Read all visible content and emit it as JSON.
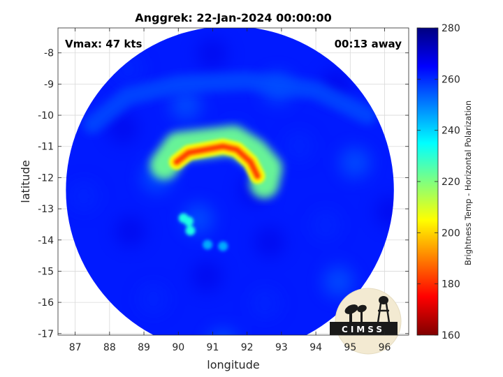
{
  "chart_data": {
    "type": "heatmap",
    "title": "Anggrek: 22-Jan-2024 00:00:00",
    "xlabel": "longitude",
    "ylabel": "latitude",
    "xlim": [
      86.5,
      96.7
    ],
    "ylim": [
      -17.05,
      -7.2
    ],
    "xticks": [
      "87",
      "88",
      "89",
      "90",
      "91",
      "92",
      "93",
      "94",
      "95",
      "96"
    ],
    "yticks": [
      "-8",
      "-9",
      "-10",
      "-11",
      "-12",
      "-13",
      "-14",
      "-15",
      "-16",
      "-17"
    ],
    "grid": true,
    "annotations": {
      "vmax": "Vmax: 47 kts",
      "time_offset": "00:13 away"
    },
    "colorbar": {
      "label": "Brightness Temp - Horizontal Polarization",
      "range": [
        160,
        280
      ],
      "ticks": [
        "280",
        "260",
        "240",
        "220",
        "200",
        "180",
        "160"
      ],
      "colormap": "jet"
    },
    "swath": {
      "center": {
        "lon": 91.5,
        "lat": -12.4
      },
      "radius_deg": 5.0,
      "background_tb": 262
    },
    "features": [
      {
        "kind": "band",
        "description": "main rainband arc",
        "points": [
          [
            89.95,
            -11.5
          ],
          [
            90.3,
            -11.2
          ],
          [
            90.8,
            -11.1
          ],
          [
            91.3,
            -11.0
          ],
          [
            91.7,
            -11.1
          ],
          [
            92.1,
            -11.5
          ],
          [
            92.3,
            -11.95
          ]
        ],
        "tb": 183
      },
      {
        "kind": "band",
        "description": "rainband halo",
        "points": [
          [
            89.6,
            -11.6
          ],
          [
            90.0,
            -11.0
          ],
          [
            90.8,
            -10.9
          ],
          [
            91.6,
            -10.8
          ],
          [
            92.2,
            -11.2
          ],
          [
            92.6,
            -11.7
          ],
          [
            92.5,
            -12.2
          ]
        ],
        "tb": 222
      },
      {
        "kind": "band",
        "description": "outer spiral band",
        "points": [
          [
            87.5,
            -10.3
          ],
          [
            88.5,
            -9.4
          ],
          [
            90.0,
            -9.0
          ],
          [
            92.0,
            -8.9
          ],
          [
            94.0,
            -9.2
          ],
          [
            95.5,
            -10.0
          ]
        ],
        "tb": 256
      },
      {
        "kind": "spot",
        "description": "southern convective cells",
        "points": [
          [
            90.15,
            -13.3
          ],
          [
            90.3,
            -13.4
          ],
          [
            90.35,
            -13.7
          ]
        ],
        "tb": 232
      },
      {
        "kind": "spot",
        "description": "small cells near 91",
        "points": [
          [
            90.85,
            -14.15
          ],
          [
            91.3,
            -14.2
          ]
        ],
        "tb": 245
      }
    ],
    "logo_text": "CIMSS"
  }
}
